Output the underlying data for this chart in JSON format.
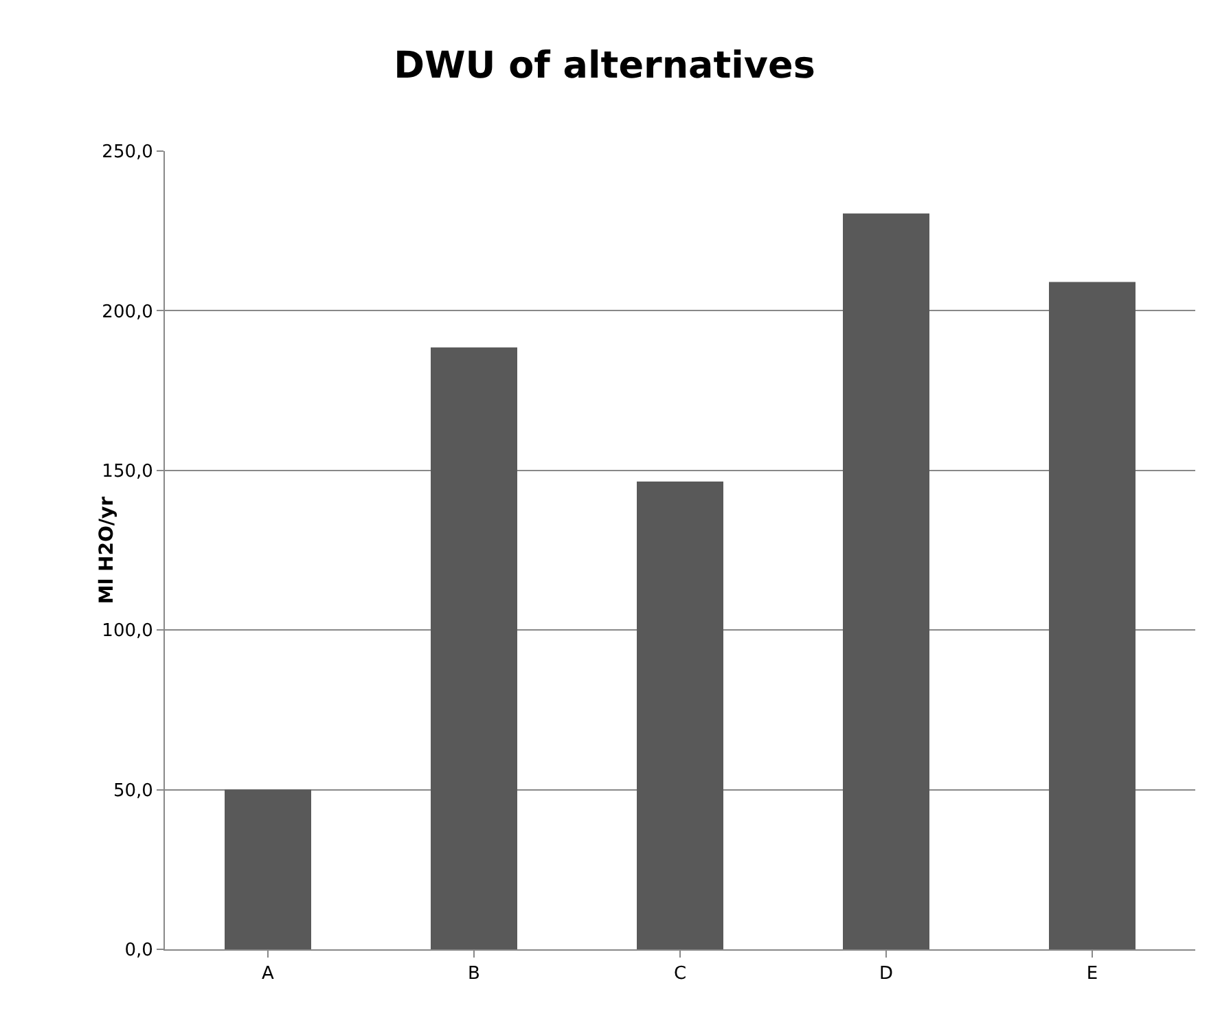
{
  "chart_data": {
    "type": "bar",
    "title": "DWU of alternatives",
    "ylabel": "Ml H2O/yr",
    "categories": [
      "A",
      "B",
      "C",
      "D",
      "E"
    ],
    "values": [
      50,
      188.5,
      146.5,
      230.5,
      209
    ],
    "color": "#595959",
    "ylim": [
      0,
      250
    ],
    "yticks": [
      {
        "value": 0,
        "label": "0,0"
      },
      {
        "value": 50,
        "label": "50,0"
      },
      {
        "value": 100,
        "label": "100,0"
      },
      {
        "value": 150,
        "label": "150,0"
      },
      {
        "value": 200,
        "label": "200,0"
      },
      {
        "value": 250,
        "label": "250,0"
      }
    ],
    "grid": "y"
  }
}
